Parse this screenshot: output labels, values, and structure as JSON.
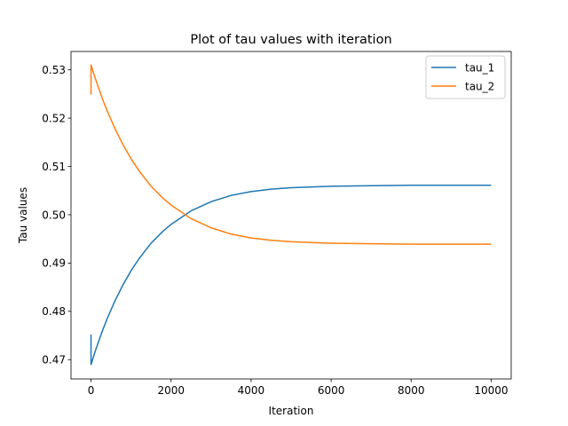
{
  "chart_data": {
    "type": "line",
    "title": "Plot of tau values with iteration",
    "xlabel": "Iteration",
    "ylabel": "Tau values",
    "xlim": [
      -500,
      10500
    ],
    "ylim": [
      0.466,
      0.5338
    ],
    "xticks": [
      0,
      2000,
      4000,
      6000,
      8000,
      10000
    ],
    "xtick_labels": [
      "0",
      "2000",
      "4000",
      "6000",
      "8000",
      "10000"
    ],
    "yticks": [
      0.47,
      0.48,
      0.49,
      0.5,
      0.51,
      0.52,
      0.53
    ],
    "ytick_labels": [
      "0.47",
      "0.48",
      "0.49",
      "0.50",
      "0.51",
      "0.52",
      "0.53"
    ],
    "grid": false,
    "legend_position": "top-right",
    "series": [
      {
        "name": "tau_1",
        "color": "#1f77b4",
        "x": [
          0,
          1,
          10,
          50,
          100,
          200,
          300,
          400,
          600,
          800,
          1000,
          1200,
          1500,
          1800,
          2000,
          2500,
          3000,
          3500,
          4000,
          4500,
          5000,
          6000,
          7000,
          8000,
          9000,
          10000
        ],
        "y": [
          0.4752,
          0.469,
          0.4692,
          0.4703,
          0.4716,
          0.474,
          0.4763,
          0.4784,
          0.4822,
          0.4855,
          0.4884,
          0.4909,
          0.4941,
          0.4966,
          0.498,
          0.5008,
          0.5027,
          0.504,
          0.5048,
          0.5053,
          0.5056,
          0.5059,
          0.506,
          0.5061,
          0.5061,
          0.5061
        ]
      },
      {
        "name": "tau_2",
        "color": "#ff7f0e",
        "x": [
          0,
          1,
          10,
          50,
          100,
          200,
          300,
          400,
          600,
          800,
          1000,
          1200,
          1500,
          1800,
          2000,
          2500,
          3000,
          3500,
          4000,
          4500,
          5000,
          6000,
          7000,
          8000,
          9000,
          10000
        ],
        "y": [
          0.5249,
          0.531,
          0.5308,
          0.5297,
          0.5284,
          0.526,
          0.5237,
          0.5216,
          0.5178,
          0.5145,
          0.5116,
          0.5091,
          0.5059,
          0.5034,
          0.502,
          0.4992,
          0.4973,
          0.496,
          0.4952,
          0.4947,
          0.4944,
          0.4941,
          0.494,
          0.4939,
          0.4939,
          0.4939
        ]
      }
    ]
  }
}
